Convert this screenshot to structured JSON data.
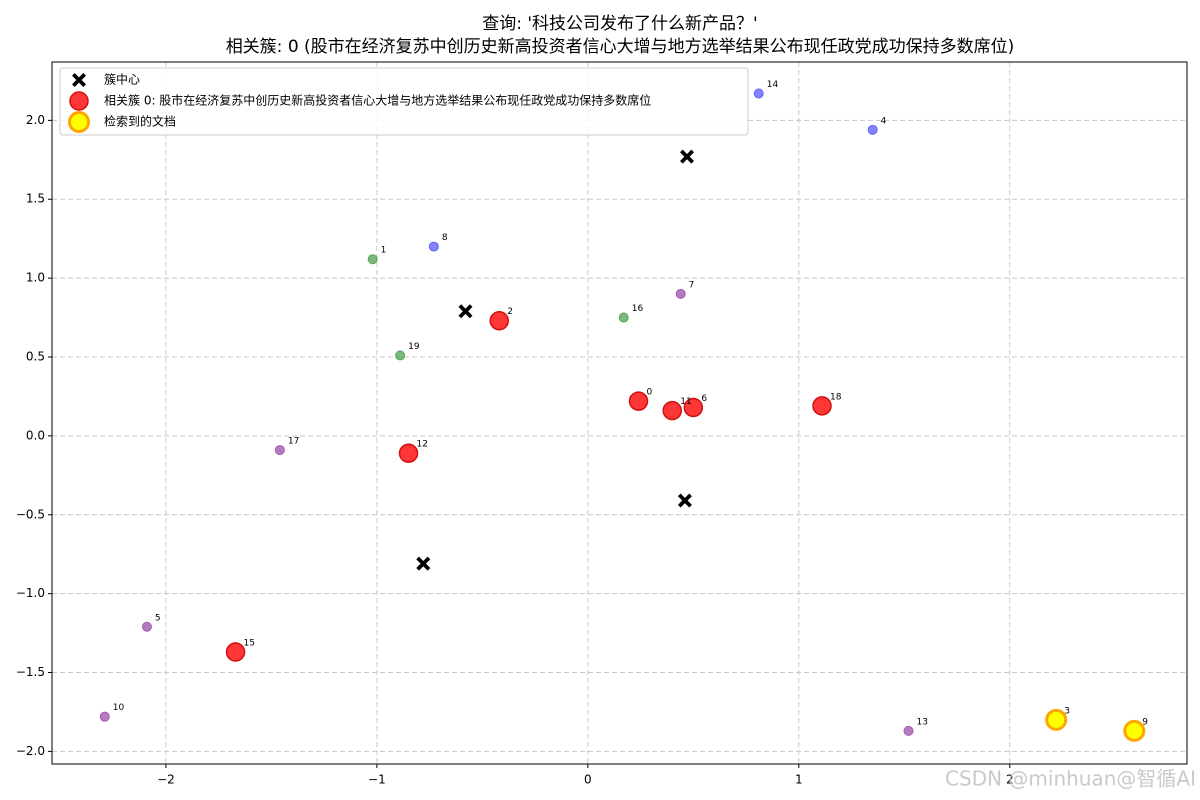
{
  "chart_data": {
    "type": "scatter",
    "title": "查询: '科技公司发布了什么新产品？'",
    "subtitle": "相关簇: 0 (股市在经济复苏中创历史新高投资者信心大增与地方选举结果公布现任政党成功保持多数席位)",
    "xlim": [
      -2.54,
      2.84
    ],
    "ylim": [
      -2.08,
      2.37
    ],
    "xticks": [
      {
        "value": -2,
        "label": "−2"
      },
      {
        "value": -1,
        "label": "−1"
      },
      0,
      1,
      2
    ],
    "yticks": [
      {
        "value": -2,
        "label": "−2.0"
      },
      {
        "value": -1.5,
        "label": "−1.5"
      },
      {
        "value": -1,
        "label": "−1.0"
      },
      {
        "value": -0.5,
        "label": "−0.5"
      },
      {
        "value": 0,
        "label": "0.0"
      },
      {
        "value": 0.5,
        "label": "0.5"
      },
      {
        "value": 1,
        "label": "1.0"
      },
      {
        "value": 1.5,
        "label": "1.5"
      },
      {
        "value": 2,
        "label": "2.0"
      }
    ],
    "grid": true,
    "legend": "upper left",
    "series": [
      {
        "name": "簇中心",
        "marker": "x",
        "color": "#000000",
        "x": [
          0.47,
          -0.58,
          0.46,
          -0.78
        ],
        "y": [
          1.77,
          0.79,
          -0.41,
          -0.81
        ]
      },
      {
        "name": "相关簇 0: 股市在经济复苏中创历史新高投资者信心大增与地方选举结果公布现任政党成功保持多数席位",
        "marker": "large",
        "color": "#ff2020",
        "labels": [
          "0",
          "2",
          "6",
          "11",
          "12",
          "15",
          "18"
        ],
        "x": [
          0.24,
          -0.42,
          0.5,
          0.4,
          -0.85,
          -1.67,
          1.11
        ],
        "y": [
          0.22,
          0.73,
          0.18,
          0.16,
          -0.11,
          -1.37,
          0.19
        ]
      },
      {
        "name": "检索到的文档",
        "marker": "highlight",
        "color": "#ffff00",
        "labels": [
          "3",
          "9"
        ],
        "x": [
          2.22,
          2.59
        ],
        "y": [
          -1.8,
          -1.87
        ]
      },
      {
        "marker": "small",
        "color": "#6464ff",
        "labels": [
          "4",
          "8",
          "14"
        ],
        "x": [
          1.35,
          -0.73,
          0.81
        ],
        "y": [
          1.94,
          1.2,
          2.17
        ]
      },
      {
        "marker": "small",
        "color": "#5aa65a",
        "labels": [
          "1",
          "16",
          "19"
        ],
        "x": [
          -1.02,
          0.17,
          -0.89
        ],
        "y": [
          1.12,
          0.75,
          0.51
        ]
      },
      {
        "marker": "small",
        "color": "#a35aaf",
        "labels": [
          "5",
          "7",
          "10",
          "13",
          "17"
        ],
        "x": [
          -2.09,
          0.44,
          -2.29,
          1.52,
          -1.46
        ],
        "y": [
          -1.21,
          0.9,
          -1.78,
          -1.87,
          -0.09
        ]
      }
    ],
    "watermark": "CSDN @minhuan@智循AI"
  }
}
